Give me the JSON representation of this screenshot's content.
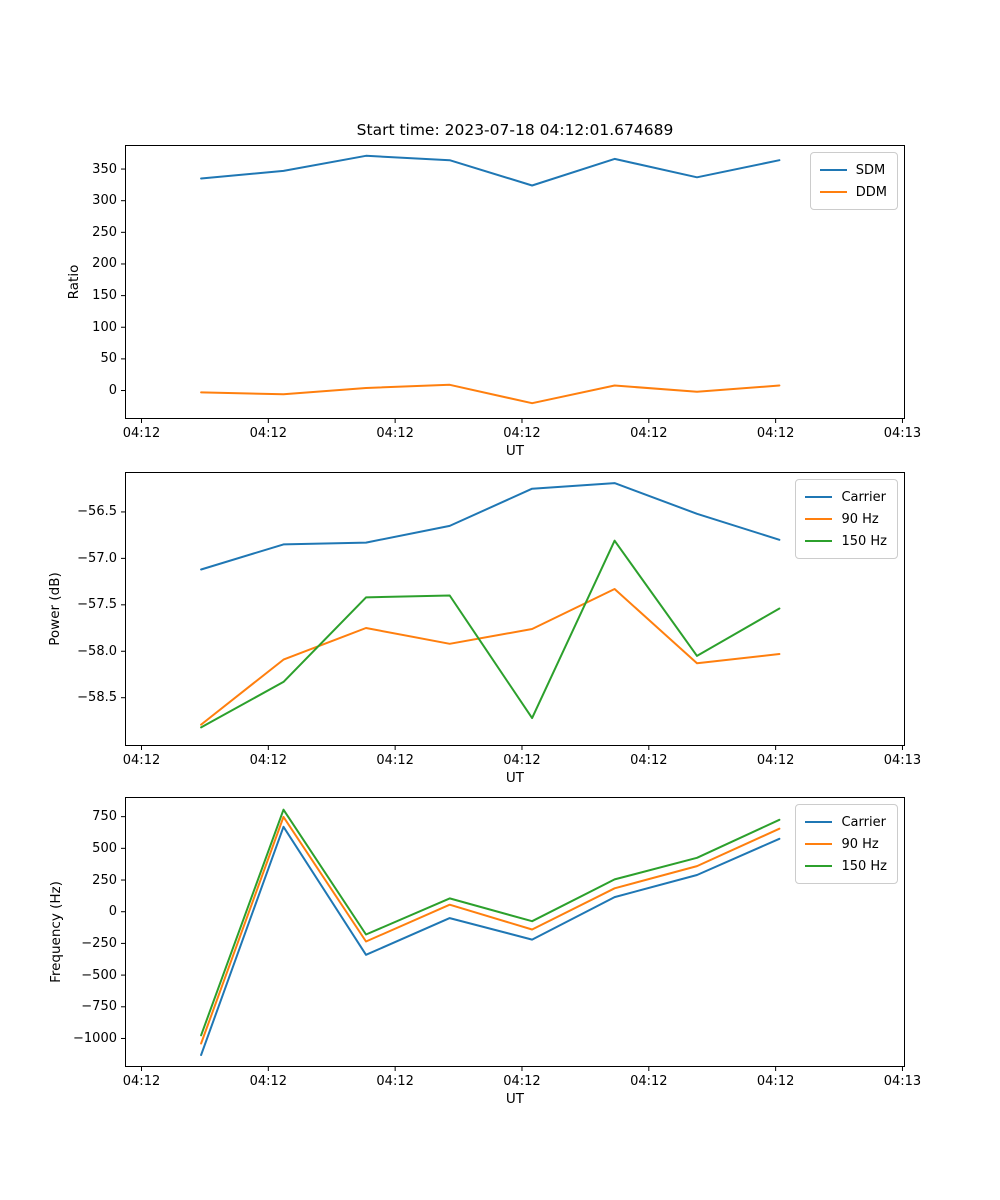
{
  "title": "Start time: 2023-07-18 04:12:01.674689",
  "figure": {
    "background": "#ffffff",
    "text_color": "#000000",
    "spine_color": "#000000"
  },
  "palette": {
    "blue": "#1f77b4",
    "orange": "#ff7f0e",
    "green": "#2ca02c"
  },
  "chart_data": [
    {
      "type": "line",
      "title": "",
      "ylabel": "Ratio",
      "xlabel": "UT",
      "grid": false,
      "legend_position": "upper right",
      "x_tick_labels": [
        "04:12",
        "04:12",
        "04:12",
        "04:12",
        "04:12",
        "04:12",
        "04:13"
      ],
      "x_ticks_seconds": [
        0,
        10,
        20,
        30,
        40,
        50,
        60
      ],
      "xlim_seconds": [
        -1.3,
        60.2
      ],
      "x_seconds": [
        4.7,
        11.2,
        17.7,
        24.3,
        30.8,
        37.3,
        43.8,
        50.3
      ],
      "y_tick_labels": [
        "350",
        "300",
        "250",
        "200",
        "150",
        "100",
        "50",
        "0"
      ],
      "y_tick_values": [
        350,
        300,
        250,
        200,
        150,
        100,
        50,
        0
      ],
      "ylim": [
        -45,
        388
      ],
      "series": [
        {
          "name": "SDM",
          "color": "#1f77b4",
          "values": [
            335,
            347,
            371,
            364,
            324,
            366,
            337,
            364
          ]
        },
        {
          "name": "DDM",
          "color": "#ff7f0e",
          "values": [
            -3,
            -6,
            4,
            9,
            -20,
            8,
            -2,
            8
          ]
        }
      ]
    },
    {
      "type": "line",
      "title": "",
      "ylabel": "Power (dB)",
      "xlabel": "UT",
      "grid": false,
      "legend_position": "upper right",
      "x_tick_labels": [
        "04:12",
        "04:12",
        "04:12",
        "04:12",
        "04:12",
        "04:12",
        "04:13"
      ],
      "x_ticks_seconds": [
        0,
        10,
        20,
        30,
        40,
        50,
        60
      ],
      "xlim_seconds": [
        -1.3,
        60.2
      ],
      "x_seconds": [
        4.7,
        11.2,
        17.7,
        24.3,
        30.8,
        37.3,
        43.8,
        50.3
      ],
      "y_tick_labels": [
        "−56.5",
        "−57.0",
        "−57.5",
        "−58.0",
        "−58.5"
      ],
      "y_tick_values": [
        -56.5,
        -57.0,
        -57.5,
        -58.0,
        -58.5
      ],
      "ylim": [
        -59.02,
        -56.07
      ],
      "series": [
        {
          "name": "Carrier",
          "color": "#1f77b4",
          "values": [
            -57.12,
            -56.85,
            -56.83,
            -56.65,
            -56.25,
            -56.19,
            -56.52,
            -56.8
          ]
        },
        {
          "name": "90 Hz",
          "color": "#ff7f0e",
          "values": [
            -58.79,
            -58.09,
            -57.75,
            -57.92,
            -57.76,
            -57.33,
            -58.13,
            -58.03
          ]
        },
        {
          "name": "150 Hz",
          "color": "#2ca02c",
          "values": [
            -58.82,
            -58.33,
            -57.42,
            -57.4,
            -58.72,
            -56.81,
            -58.05,
            -57.54
          ]
        }
      ]
    },
    {
      "type": "line",
      "title": "",
      "ylabel": "Frequency (Hz)",
      "xlabel": "UT",
      "grid": false,
      "legend_position": "upper right",
      "x_tick_labels": [
        "04:12",
        "04:12",
        "04:12",
        "04:12",
        "04:12",
        "04:12",
        "04:13"
      ],
      "x_ticks_seconds": [
        0,
        10,
        20,
        30,
        40,
        50,
        60
      ],
      "xlim_seconds": [
        -1.3,
        60.2
      ],
      "x_seconds": [
        4.7,
        11.2,
        17.7,
        24.3,
        30.8,
        37.3,
        43.8,
        50.3
      ],
      "y_tick_labels": [
        "750",
        "500",
        "250",
        "0",
        "−250",
        "−500",
        "−750",
        "−1000"
      ],
      "y_tick_values": [
        750,
        500,
        250,
        0,
        -250,
        -500,
        -750,
        -1000
      ],
      "ylim": [
        -1225,
        905
      ],
      "series": [
        {
          "name": "Carrier",
          "color": "#1f77b4",
          "values": [
            -1130,
            670,
            -340,
            -50,
            -220,
            115,
            290,
            575
          ]
        },
        {
          "name": "90 Hz",
          "color": "#ff7f0e",
          "values": [
            -1040,
            748,
            -235,
            55,
            -140,
            185,
            360,
            655
          ]
        },
        {
          "name": "150 Hz",
          "color": "#2ca02c",
          "values": [
            -975,
            805,
            -180,
            105,
            -75,
            255,
            425,
            725
          ]
        }
      ]
    }
  ]
}
